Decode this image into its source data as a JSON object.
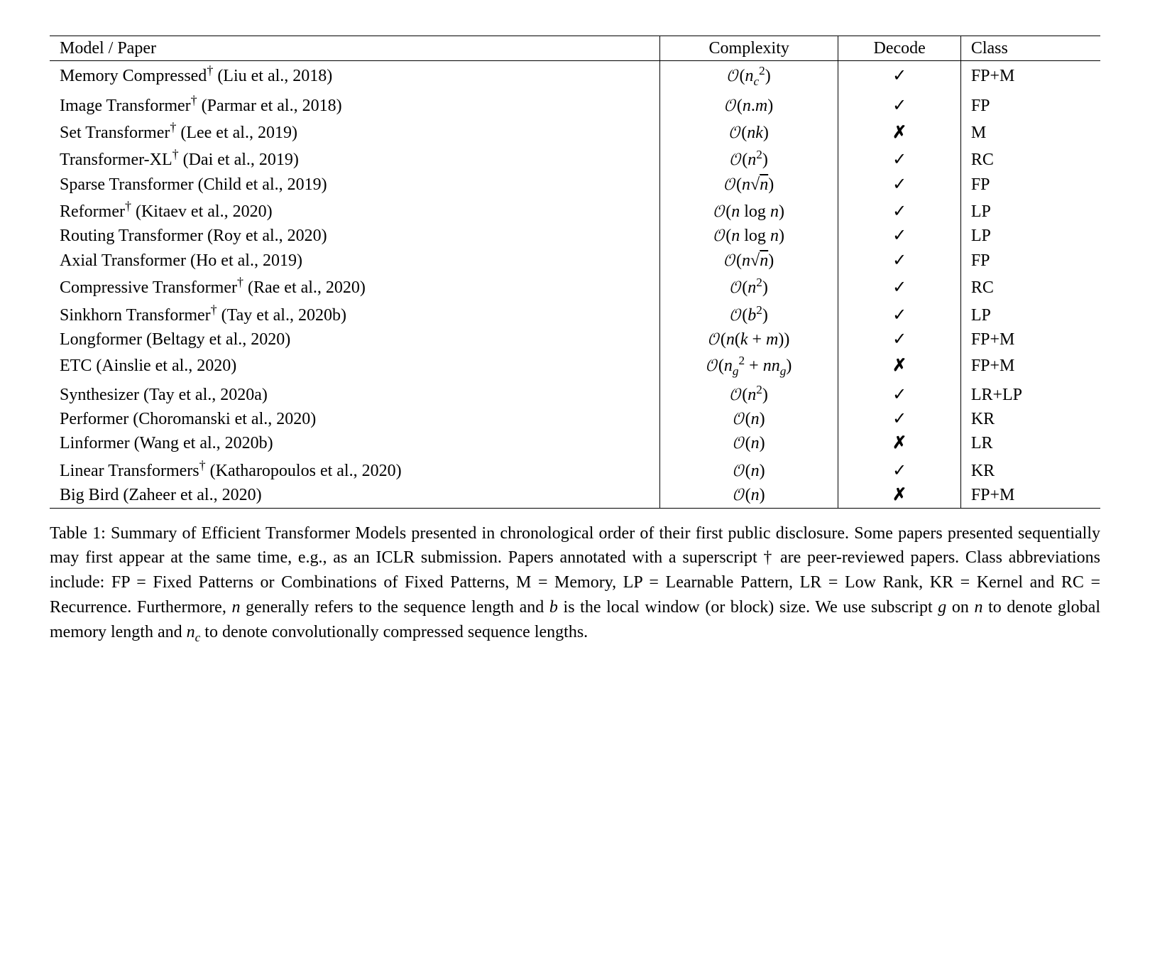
{
  "table": {
    "type": "table",
    "columns": [
      {
        "key": "model",
        "label": "Model / Paper",
        "align": "left"
      },
      {
        "key": "complexity",
        "label": "Complexity",
        "align": "center"
      },
      {
        "key": "decode",
        "label": "Decode",
        "align": "center"
      },
      {
        "key": "class",
        "label": "Class",
        "align": "left"
      }
    ],
    "column_borders": "0.6px solid #000",
    "top_rule": "1.2px solid #000",
    "mid_rule": "0.6px solid #000",
    "bottom_rule": "1.2px solid #000",
    "background_color": "#ffffff",
    "text_color": "#000000",
    "font_family": "Times New Roman serif",
    "font_size_pt": 18,
    "check_glyph": "✓",
    "cross_glyph": "✗",
    "rows": [
      {
        "model": "Memory Compressed",
        "dagger": true,
        "citation": "(Liu et al., 2018)",
        "complexity_html": "<span class='bigo'>𝒪</span>(<i>n</i><sub class='sub'><i>c</i></sub><sup class='sup'>2</sup>)",
        "decode": true,
        "class": "FP+M"
      },
      {
        "model": "Image Transformer",
        "dagger": true,
        "citation": "(Parmar et al., 2018)",
        "complexity_html": "<span class='bigo'>𝒪</span>(<i>n</i>.<i>m</i>)",
        "decode": true,
        "class": "FP"
      },
      {
        "model": "Set Transformer",
        "dagger": true,
        "citation": "(Lee et al., 2019)",
        "complexity_html": "<span class='bigo'>𝒪</span>(<i>nk</i>)",
        "decode": false,
        "class": "M"
      },
      {
        "model": "Transformer-XL",
        "dagger": true,
        "citation": "(Dai et al., 2019)",
        "complexity_html": "<span class='bigo'>𝒪</span>(<i>n</i><sup class='sup'>2</sup>)",
        "decode": true,
        "class": "RC"
      },
      {
        "model": "Sparse Transformer ",
        "dagger": false,
        "citation": "(Child et al., 2019)",
        "complexity_html": "<span class='bigo'>𝒪</span>(<i>n</i>√<span style='text-decoration:overline;'><i>n</i></span>)",
        "decode": true,
        "class": "FP"
      },
      {
        "model": "Reformer",
        "dagger": true,
        "citation": "(Kitaev et al., 2020)",
        "complexity_html": "<span class='bigo'>𝒪</span>(<i>n</i> log <i>n</i>)",
        "decode": true,
        "class": "LP"
      },
      {
        "model": "Routing Transformer",
        "dagger": false,
        "citation": "(Roy et al., 2020)",
        "complexity_html": "<span class='bigo'>𝒪</span>(<i>n</i> log <i>n</i>)",
        "decode": true,
        "class": "LP"
      },
      {
        "model": "Axial Transformer",
        "dagger": false,
        "citation": "(Ho et al., 2019)",
        "complexity_html": "<span class='bigo'>𝒪</span>(<i>n</i>√<span style='text-decoration:overline;'><i>n</i></span>)",
        "decode": true,
        "class": "FP"
      },
      {
        "model": "Compressive Transformer",
        "dagger": true,
        "citation": "(Rae et al., 2020)",
        "complexity_html": "<span class='bigo'>𝒪</span>(<i>n</i><sup class='sup'>2</sup>)",
        "decode": true,
        "class": "RC"
      },
      {
        "model": "Sinkhorn Transformer",
        "dagger": true,
        "citation": "(Tay et al., 2020b)",
        "complexity_html": "<span class='bigo'>𝒪</span>(<i>b</i><sup class='sup'>2</sup>)",
        "decode": true,
        "class": "LP"
      },
      {
        "model": "Longformer",
        "dagger": false,
        "citation": "(Beltagy et al., 2020)",
        "complexity_html": "<span class='bigo'>𝒪</span>(<i>n</i>(<i>k</i> + <i>m</i>))",
        "decode": true,
        "class": "FP+M"
      },
      {
        "model": "ETC",
        "dagger": false,
        "citation": "(Ainslie et al., 2020)",
        "complexity_html": "<span class='bigo'>𝒪</span>(<i>n</i><sub class='sub'><i>g</i></sub><sup class='sup'>2</sup> + <i>nn</i><sub class='sub'><i>g</i></sub>)",
        "decode": false,
        "class": "FP+M"
      },
      {
        "model": "Synthesizer",
        "dagger": false,
        "citation": "(Tay et al., 2020a)",
        "complexity_html": "<span class='bigo'>𝒪</span>(<i>n</i><sup class='sup'>2</sup>)",
        "decode": true,
        "class": "LR+LP"
      },
      {
        "model": "Performer",
        "dagger": false,
        "citation": "(Choromanski et al., 2020)",
        "complexity_html": "<span class='bigo'>𝒪</span>(<i>n</i>)",
        "decode": true,
        "class": "KR"
      },
      {
        "model": "Linformer",
        "dagger": false,
        "citation": "(Wang et al., 2020b)",
        "complexity_html": "<span class='bigo'>𝒪</span>(<i>n</i>)",
        "decode": false,
        "class": "LR"
      },
      {
        "model": "Linear Transformers",
        "dagger": true,
        "citation": " (Katharopoulos et al., 2020)",
        "complexity_html": "<span class='bigo'>𝒪</span>(<i>n</i>)",
        "decode": true,
        "class": "KR"
      },
      {
        "model": "Big Bird",
        "dagger": false,
        "citation": "(Zaheer et al., 2020)",
        "complexity_html": "<span class='bigo'>𝒪</span>(<i>n</i>)",
        "decode": false,
        "class": "FP+M"
      }
    ]
  },
  "caption": {
    "label": "Table 1:",
    "text_html": "Summary of Efficient Transformer Models presented in chronological order of their first public disclosure. Some papers presented sequentially may first appear at the same time, e.g., as an ICLR submission. Papers annotated with a superscript † are peer-reviewed papers. Class abbreviations include: FP = Fixed Patterns or Combinations of Fixed Patterns, M = Memory, LP = Learnable Pattern, LR = Low Rank, KR = Kernel and RC = Recurrence. Furthermore, <i>n</i> generally refers to the sequence length and <i>b</i> is the local window (or block) size. We use subscript <i>g</i> on <i>n</i> to denote global memory length and <i>n</i><sub class='sub'><i>c</i></sub> to denote convolutionally compressed sequence lengths.",
    "font_size_pt": 18,
    "text_color": "#000000",
    "align": "justify"
  }
}
